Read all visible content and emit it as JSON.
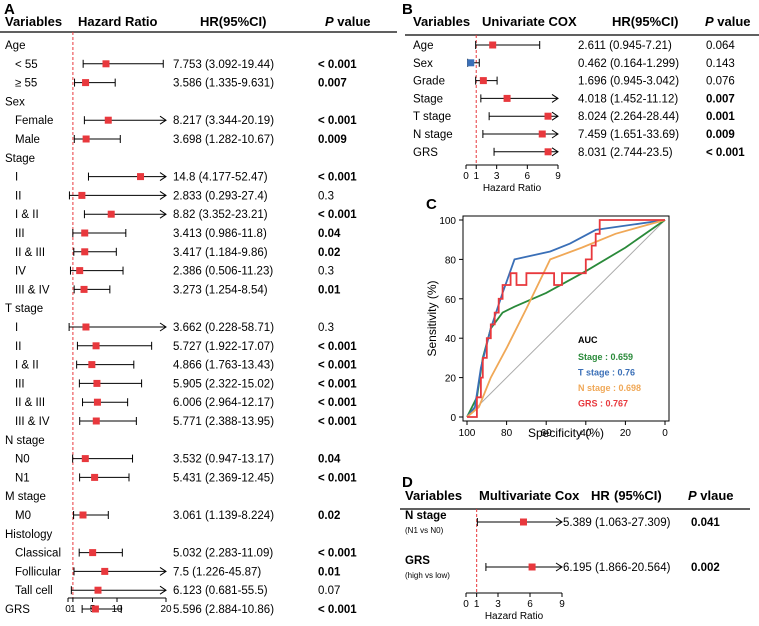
{
  "colors": {
    "marker": "#e8383d",
    "ref_line": "#e8383d",
    "roc_stage": "#2a8a3a",
    "roc_t_stage": "#3a6fb7",
    "roc_n_stage": "#f0a857",
    "roc_grs": "#e8383d",
    "diag": "#aaaaaa"
  },
  "chart_data": [
    {
      "panel": "A",
      "type": "forest",
      "headers": {
        "variables": "Variables",
        "hr": "Hazard Ratio",
        "ci": "HR(95%CI)",
        "p_italic": "P",
        "p_rest": " value"
      },
      "axis": {
        "min": 0,
        "max": 20,
        "ref": 1,
        "ticks": [
          {
            "v": 0,
            "label": "0"
          },
          {
            "v": 1,
            "label": "1"
          },
          {
            "v": 5,
            "label": "5"
          },
          {
            "v": 10,
            "label": "10"
          },
          {
            "v": 20,
            "label": "20"
          }
        ]
      },
      "rows": [
        {
          "label": "Age",
          "group": true
        },
        {
          "label": "< 55",
          "hr": 7.753,
          "lo": 3.092,
          "hi": 19.44,
          "ci": "7.753 (3.092-19.44)",
          "p": "< 0.001",
          "bold": true
        },
        {
          "label": "≥ 55",
          "hr": 3.586,
          "lo": 1.335,
          "hi": 9.631,
          "ci": "3.586 (1.335-9.631)",
          "p": "0.007",
          "bold": true
        },
        {
          "label": "Sex",
          "group": true
        },
        {
          "label": "Female",
          "hr": 8.217,
          "lo": 3.344,
          "hi": 20.19,
          "arrow": true,
          "ci": "8.217 (3.344-20.19)",
          "p": "< 0.001",
          "bold": true
        },
        {
          "label": "Male",
          "hr": 3.698,
          "lo": 1.282,
          "hi": 10.67,
          "ci": "3.698 (1.282-10.67)",
          "p": "0.009",
          "bold": true
        },
        {
          "label": "Stage",
          "group": true
        },
        {
          "label": "I",
          "hr": 14.8,
          "lo": 4.177,
          "hi": 52.47,
          "arrow": true,
          "ci": "14.8 (4.177-52.47)",
          "p": "< 0.001",
          "bold": true
        },
        {
          "label": "II",
          "hr": 2.833,
          "lo": 0.293,
          "hi": 27.4,
          "arrow": true,
          "ci": "2.833 (0.293-27.4)",
          "p": "0.3",
          "bold": false
        },
        {
          "label": "I & II",
          "hr": 8.82,
          "lo": 3.352,
          "hi": 23.21,
          "arrow": true,
          "ci": "8.82 (3.352-23.21)",
          "p": "< 0.001",
          "bold": true
        },
        {
          "label": "III",
          "hr": 3.413,
          "lo": 0.986,
          "hi": 11.8,
          "ci": "3.413 (0.986-11.8)",
          "p": "0.04",
          "bold": true
        },
        {
          "label": "II & III",
          "hr": 3.417,
          "lo": 1.184,
          "hi": 9.86,
          "ci": "3.417 (1.184-9.86)",
          "p": "0.02",
          "bold": true
        },
        {
          "label": "IV",
          "hr": 2.386,
          "lo": 0.506,
          "hi": 11.23,
          "ci": "2.386 (0.506-11.23)",
          "p": "0.3",
          "bold": false
        },
        {
          "label": "III & IV",
          "hr": 3.273,
          "lo": 1.254,
          "hi": 8.54,
          "ci": "3.273 (1.254-8.54)",
          "p": "0.01",
          "bold": true
        },
        {
          "label": "T stage",
          "group": true
        },
        {
          "label": "I",
          "hr": 3.662,
          "lo": 0.228,
          "hi": 58.71,
          "arrow": true,
          "ci": "3.662 (0.228-58.71)",
          "p": "0.3",
          "bold": false
        },
        {
          "label": "II",
          "hr": 5.727,
          "lo": 1.922,
          "hi": 17.07,
          "ci": "5.727 (1.922-17.07)",
          "p": "< 0.001",
          "bold": true
        },
        {
          "label": "I & II",
          "hr": 4.866,
          "lo": 1.763,
          "hi": 13.43,
          "ci": "4.866 (1.763-13.43)",
          "p": "< 0.001",
          "bold": true
        },
        {
          "label": "III",
          "hr": 5.905,
          "lo": 2.322,
          "hi": 15.02,
          "ci": "5.905 (2.322-15.02)",
          "p": "< 0.001",
          "bold": true
        },
        {
          "label": "II & III",
          "hr": 6.006,
          "lo": 2.964,
          "hi": 12.17,
          "ci": "6.006 (2.964-12.17)",
          "p": "< 0.001",
          "bold": true
        },
        {
          "label": "III & IV",
          "hr": 5.771,
          "lo": 2.388,
          "hi": 13.95,
          "ci": "5.771 (2.388-13.95)",
          "p": "< 0.001",
          "bold": true
        },
        {
          "label": "N stage",
          "group": true
        },
        {
          "label": "N0",
          "hr": 3.532,
          "lo": 0.947,
          "hi": 13.17,
          "ci": "3.532 (0.947-13.17)",
          "p": "0.04",
          "bold": true
        },
        {
          "label": "N1",
          "hr": 5.431,
          "lo": 2.369,
          "hi": 12.45,
          "ci": "5.431 (2.369-12.45)",
          "p": "< 0.001",
          "bold": true
        },
        {
          "label": "M stage",
          "group": true
        },
        {
          "label": "M0",
          "hr": 3.061,
          "lo": 1.139,
          "hi": 8.224,
          "ci": "3.061 (1.139-8.224)",
          "p": "0.02",
          "bold": true
        },
        {
          "label": "Histology",
          "group": true
        },
        {
          "label": "Classical",
          "hr": 5.032,
          "lo": 2.283,
          "hi": 11.09,
          "ci": "5.032 (2.283-11.09)",
          "p": "< 0.001",
          "bold": true
        },
        {
          "label": "Follicular",
          "hr": 7.5,
          "lo": 1.226,
          "hi": 45.87,
          "arrow": true,
          "ci": "7.5 (1.226-45.87)",
          "p": "0.01",
          "bold": true
        },
        {
          "label": "Tall cell",
          "hr": 6.123,
          "lo": 0.681,
          "hi": 55.5,
          "arrow": true,
          "ci": "6.123 (0.681-55.5)",
          "p": "0.07",
          "bold": false
        },
        {
          "label": "GRS",
          "group": true,
          "hr": 5.596,
          "lo": 2.884,
          "hi": 10.86,
          "ci": "5.596 (2.884-10.86)",
          "p": "< 0.001",
          "bold": true
        }
      ]
    },
    {
      "panel": "B",
      "type": "forest",
      "headers": {
        "variables": "Variables",
        "hr": "Univariate COX",
        "ci": "HR(95%CI)",
        "p_italic": "P",
        "p_rest": " value"
      },
      "axis": {
        "min": 0,
        "max": 9,
        "ref": 1,
        "ticks": [
          {
            "v": 0,
            "label": "0"
          },
          {
            "v": 1,
            "label": "1"
          },
          {
            "v": 3,
            "label": "3"
          },
          {
            "v": 6,
            "label": "6"
          },
          {
            "v": 9,
            "label": "9"
          }
        ],
        "xlabel": "Hazard Ratio"
      },
      "rows": [
        {
          "label": "Age",
          "hr": 2.611,
          "lo": 0.945,
          "hi": 7.21,
          "ci": "2.611 (0.945-7.21)",
          "p": "0.064",
          "bold": false
        },
        {
          "label": "Sex",
          "hr": 0.462,
          "lo": 0.164,
          "hi": 1.299,
          "ci": "0.462 (0.164-1.299)",
          "p": "0.143",
          "bold": false,
          "blue": true
        },
        {
          "label": "Grade",
          "hr": 1.696,
          "lo": 0.945,
          "hi": 3.042,
          "ci": "1.696 (0.945-3.042)",
          "p": "0.076",
          "bold": false
        },
        {
          "label": "Stage",
          "hr": 4.018,
          "lo": 1.452,
          "hi": 11.12,
          "arrow": true,
          "ci": "4.018 (1.452-11.12)",
          "p": "0.007",
          "bold": true
        },
        {
          "label": "T stage",
          "hr": 8.024,
          "lo": 2.264,
          "hi": 28.44,
          "arrow": true,
          "ci": "8.024 (2.264-28.44)",
          "p": "0.001",
          "bold": true
        },
        {
          "label": "N stage",
          "hr": 7.459,
          "lo": 1.651,
          "hi": 33.69,
          "arrow": true,
          "ci": "7.459 (1.651-33.69)",
          "p": "0.009",
          "bold": true
        },
        {
          "label": "GRS",
          "hr": 8.031,
          "lo": 2.744,
          "hi": 23.5,
          "arrow": true,
          "ci": "8.031 (2.744-23.5)",
          "p": "< 0.001",
          "bold": true
        }
      ]
    },
    {
      "panel": "C",
      "type": "line",
      "subtype": "roc",
      "xlabel": "Specificity (%)",
      "ylabel": "Sensitivity (%)",
      "xlim": [
        100,
        0
      ],
      "ylim": [
        0,
        100
      ],
      "xticks": [
        "100",
        "80",
        "60",
        "40",
        "20",
        "0"
      ],
      "yticks": [
        "0",
        "20",
        "40",
        "60",
        "80",
        "100"
      ],
      "legend_title": "AUC",
      "series": [
        {
          "name": "Stage",
          "label": "Stage : 0.659",
          "color": "#2a8a3a",
          "points": [
            [
              100,
              0
            ],
            [
              95,
              10
            ],
            [
              92,
              30
            ],
            [
              88,
              45
            ],
            [
              82,
              53
            ],
            [
              76,
              56
            ],
            [
              60,
              63
            ],
            [
              40,
              74
            ],
            [
              20,
              86
            ],
            [
              0,
              100
            ]
          ]
        },
        {
          "name": "T stage",
          "label": "T stage : 0.76",
          "color": "#3a6fb7",
          "points": [
            [
              100,
              0
            ],
            [
              96,
              5
            ],
            [
              93,
              25
            ],
            [
              88,
              45
            ],
            [
              82,
              63
            ],
            [
              76,
              80
            ],
            [
              58,
              84
            ],
            [
              48,
              88
            ],
            [
              35,
              95
            ],
            [
              0,
              100
            ]
          ]
        },
        {
          "name": "N stage",
          "label": "N stage : 0.698",
          "color": "#f0a857",
          "points": [
            [
              100,
              0
            ],
            [
              94,
              5
            ],
            [
              88,
              20
            ],
            [
              80,
              35
            ],
            [
              70,
              55
            ],
            [
              58,
              80
            ],
            [
              42,
              86
            ],
            [
              25,
              93
            ],
            [
              0,
              100
            ]
          ]
        },
        {
          "name": "GRS",
          "label": "GRS : 0.767",
          "color": "#e8383d",
          "points": [
            [
              100,
              0
            ],
            [
              95,
              0
            ],
            [
              95,
              10
            ],
            [
              93,
              10
            ],
            [
              93,
              20
            ],
            [
              92,
              20
            ],
            [
              92,
              30
            ],
            [
              90,
              30
            ],
            [
              90,
              40
            ],
            [
              88,
              40
            ],
            [
              88,
              47
            ],
            [
              86,
              47
            ],
            [
              86,
              53
            ],
            [
              84,
              53
            ],
            [
              84,
              60
            ],
            [
              82,
              60
            ],
            [
              82,
              67
            ],
            [
              78,
              67
            ],
            [
              78,
              73
            ],
            [
              75,
              73
            ],
            [
              75,
              67
            ],
            [
              70,
              67
            ],
            [
              70,
              73
            ],
            [
              56,
              73
            ],
            [
              56,
              67
            ],
            [
              52,
              67
            ],
            [
              52,
              73
            ],
            [
              40,
              73
            ],
            [
              40,
              80
            ],
            [
              37,
              80
            ],
            [
              37,
              87
            ],
            [
              35,
              87
            ],
            [
              35,
              93
            ],
            [
              33,
              93
            ],
            [
              33,
              100
            ],
            [
              0,
              100
            ]
          ]
        }
      ]
    },
    {
      "panel": "D",
      "type": "forest",
      "headers": {
        "variables": "Variables",
        "hr": "Multivariate Cox",
        "ci_a": "HR",
        "ci_b": "(95%CI)",
        "p_italic": "P",
        "p_rest": " vlaue"
      },
      "axis": {
        "min": 0,
        "max": 9,
        "ref": 1,
        "ticks": [
          {
            "v": 0,
            "label": "0"
          },
          {
            "v": 1,
            "label": "1"
          },
          {
            "v": 3,
            "label": "3"
          },
          {
            "v": 6,
            "label": "6"
          },
          {
            "v": 9,
            "label": "9"
          }
        ],
        "xlabel": "Hazard Ratio"
      },
      "rows": [
        {
          "label": "N stage",
          "sub": "(N1 vs N0)",
          "hr": 5.389,
          "lo": 1.063,
          "hi": 27.309,
          "arrow": true,
          "ci": "5.389 (1.063-27.309)",
          "p": "0.041",
          "bold": true
        },
        {
          "label": "GRS",
          "sub": "(high vs low)",
          "hr": 6.195,
          "lo": 1.866,
          "hi": 20.564,
          "arrow": true,
          "ci": "6.195 (1.866-20.564)",
          "p": "0.002",
          "bold": true
        }
      ]
    }
  ],
  "panel_labels": {
    "a": "A",
    "b": "B",
    "c": "C",
    "d": "D"
  }
}
